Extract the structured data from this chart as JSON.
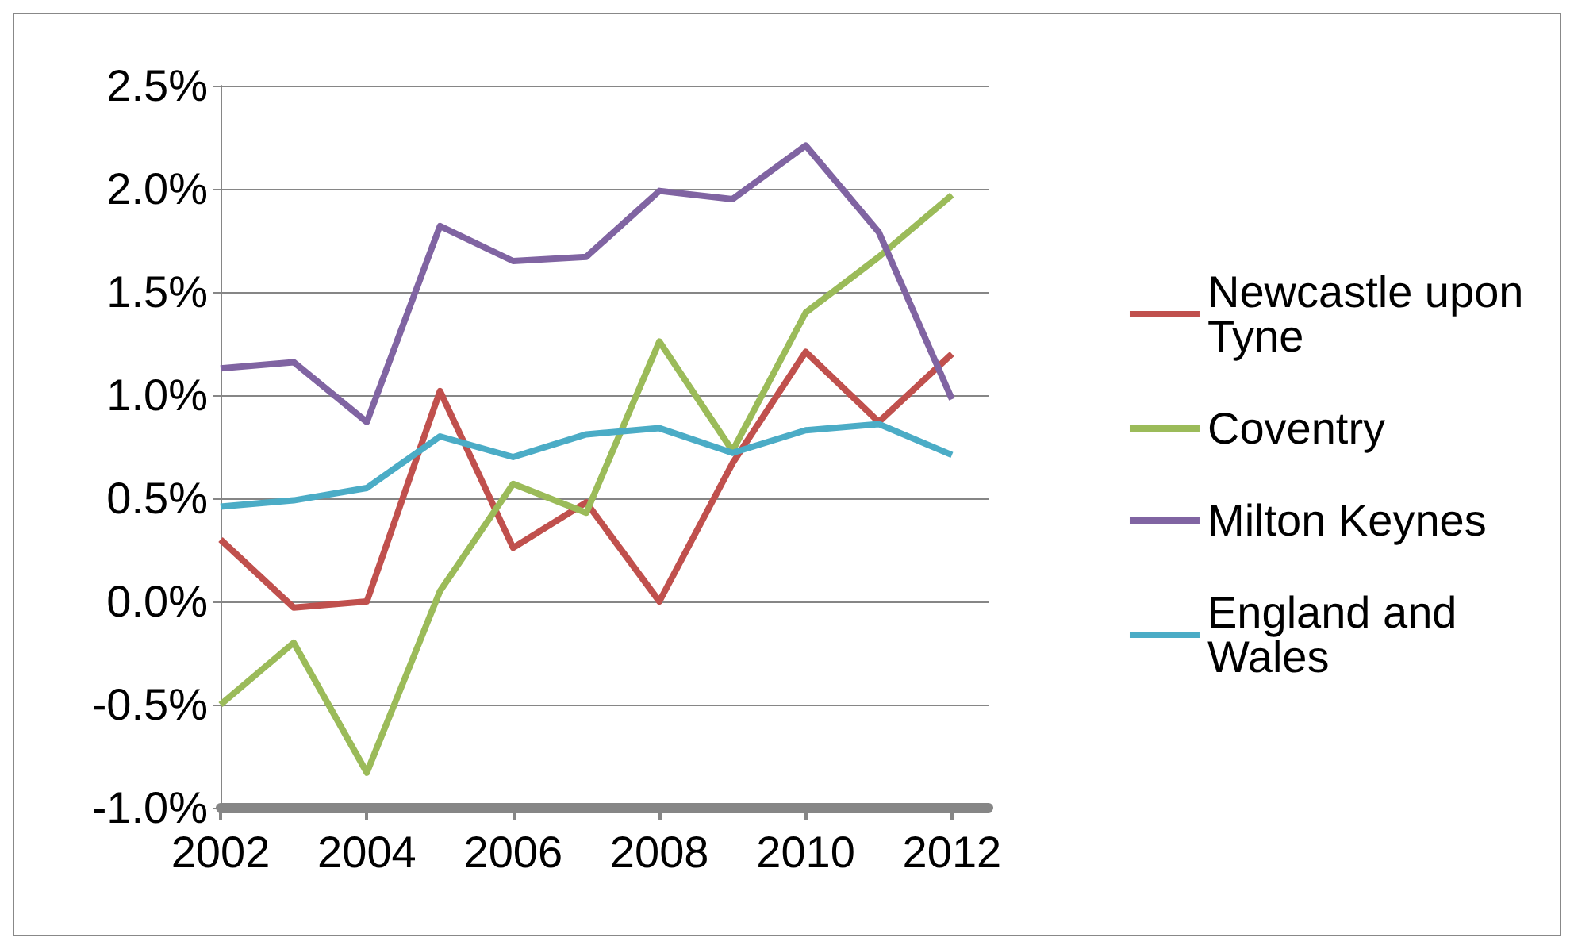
{
  "chart_data": {
    "type": "line",
    "x": [
      2002,
      2003,
      2004,
      2005,
      2006,
      2007,
      2008,
      2009,
      2010,
      2011,
      2012
    ],
    "xlim": [
      2002,
      2012.5
    ],
    "xticks": [
      2002,
      2004,
      2006,
      2008,
      2010,
      2012
    ],
    "ylim": [
      -1.0,
      2.5
    ],
    "yticks": [
      {
        "value": -1.0,
        "label": "-1.0%"
      },
      {
        "value": -0.5,
        "label": "-0.5%"
      },
      {
        "value": 0,
        "label": "0.0%"
      },
      {
        "value": 0.5,
        "label": "0.5%"
      },
      {
        "value": 1.0,
        "label": "1.0%"
      },
      {
        "value": 1.5,
        "label": "1.5%"
      },
      {
        "value": 2.0,
        "label": "2.0%"
      },
      {
        "value": 2.5,
        "label": "2.5%"
      }
    ],
    "grid": "y",
    "legend": "right",
    "marker": "none",
    "line_style": "solid",
    "series": [
      {
        "name": "Newcastle upon Tyne",
        "color": "#c0504d",
        "values": [
          0.3,
          -0.03,
          0.0,
          1.02,
          0.26,
          0.48,
          0.0,
          0.67,
          1.21,
          0.87,
          1.2
        ]
      },
      {
        "name": "Coventry",
        "color": "#9bbb59",
        "values": [
          -0.5,
          -0.2,
          -0.83,
          0.05,
          0.57,
          0.43,
          1.26,
          0.73,
          1.4,
          1.67,
          1.97
        ]
      },
      {
        "name": "Milton Keynes",
        "color": "#8064a2",
        "values": [
          1.13,
          1.16,
          0.87,
          1.82,
          1.65,
          1.67,
          1.99,
          1.95,
          2.21,
          1.79,
          0.98
        ]
      },
      {
        "name": "England and Wales",
        "color": "#4bacc6",
        "values": [
          0.46,
          0.49,
          0.55,
          0.8,
          0.7,
          0.81,
          0.84,
          0.72,
          0.83,
          0.86,
          0.71
        ]
      }
    ]
  }
}
